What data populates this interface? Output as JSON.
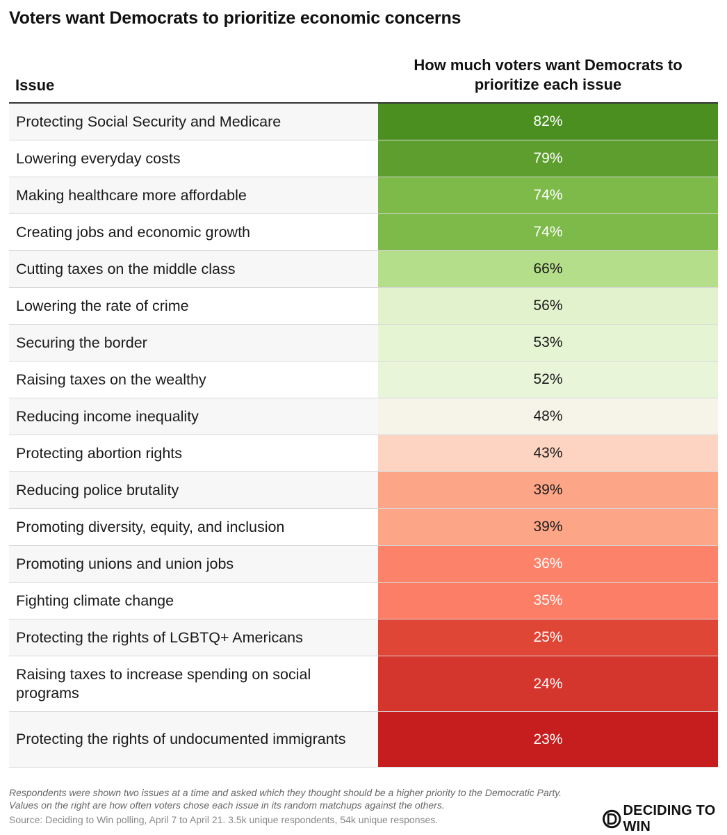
{
  "title": "Voters want Democrats to prioritize economic concerns",
  "columns": {
    "issue": "Issue",
    "value_line1": "How much voters want Democrats to",
    "value_line2": "prioritize each issue"
  },
  "chart_data": {
    "type": "table",
    "title": "Voters want Democrats to prioritize economic concerns",
    "column_headers": [
      "Issue",
      "How much voters want Democrats to prioritize each issue"
    ],
    "rows": [
      {
        "issue": "Protecting Social Security and Medicare",
        "value": 82,
        "label": "82%",
        "color": "#4a8f1f",
        "text_color": "#ffffff"
      },
      {
        "issue": "Lowering everyday costs",
        "value": 79,
        "label": "79%",
        "color": "#5e9e2e",
        "text_color": "#ffffff"
      },
      {
        "issue": "Making healthcare more affordable",
        "value": 74,
        "label": "74%",
        "color": "#7dba4a",
        "text_color": "#ffffff"
      },
      {
        "issue": "Creating jobs and economic growth",
        "value": 74,
        "label": "74%",
        "color": "#7dba4a",
        "text_color": "#ffffff"
      },
      {
        "issue": "Cutting taxes on the middle class",
        "value": 66,
        "label": "66%",
        "color": "#b5de8a",
        "text_color": "#1a1a1a"
      },
      {
        "issue": "Lowering the rate of crime",
        "value": 56,
        "label": "56%",
        "color": "#e1f2cd",
        "text_color": "#1a1a1a"
      },
      {
        "issue": "Securing the border",
        "value": 53,
        "label": "53%",
        "color": "#e5f4d3",
        "text_color": "#1a1a1a"
      },
      {
        "issue": "Raising taxes on the wealthy",
        "value": 52,
        "label": "52%",
        "color": "#e8f5d8",
        "text_color": "#1a1a1a"
      },
      {
        "issue": "Reducing income inequality",
        "value": 48,
        "label": "48%",
        "color": "#f6f4e8",
        "text_color": "#1a1a1a"
      },
      {
        "issue": "Protecting abortion rights",
        "value": 43,
        "label": "43%",
        "color": "#fdd3c1",
        "text_color": "#1a1a1a"
      },
      {
        "issue": "Reducing police brutality",
        "value": 39,
        "label": "39%",
        "color": "#fda587",
        "text_color": "#1a1a1a"
      },
      {
        "issue": "Promoting diversity, equity, and inclusion",
        "value": 39,
        "label": "39%",
        "color": "#fda587",
        "text_color": "#1a1a1a"
      },
      {
        "issue": "Promoting unions and union jobs",
        "value": 36,
        "label": "36%",
        "color": "#fd826a",
        "text_color": "#ffffff"
      },
      {
        "issue": "Fighting climate change",
        "value": 35,
        "label": "35%",
        "color": "#fd7e66",
        "text_color": "#ffffff"
      },
      {
        "issue": "Protecting the rights of LGBTQ+ Americans",
        "value": 25,
        "label": "25%",
        "color": "#df4636",
        "text_color": "#ffffff"
      },
      {
        "issue": "Raising taxes to increase spending on social programs",
        "value": 24,
        "label": "24%",
        "color": "#d4352d",
        "text_color": "#ffffff"
      },
      {
        "issue": "Protecting the rights of undocumented immigrants",
        "value": 23,
        "label": "23%",
        "color": "#c61d1e",
        "text_color": "#ffffff"
      }
    ]
  },
  "footnote": "Respondents were shown two issues at a time and asked which they thought should be a higher priority to the Democratic Party. Values on the right are how often voters chose each issue in its random matchups against the others.",
  "source": "Source: Deciding to Win polling, April 7 to April 21. 3.5k unique respondents, 54k unique responses.",
  "logo": {
    "text": "DECIDING TO WIN",
    "icon": "d-circle-icon"
  }
}
